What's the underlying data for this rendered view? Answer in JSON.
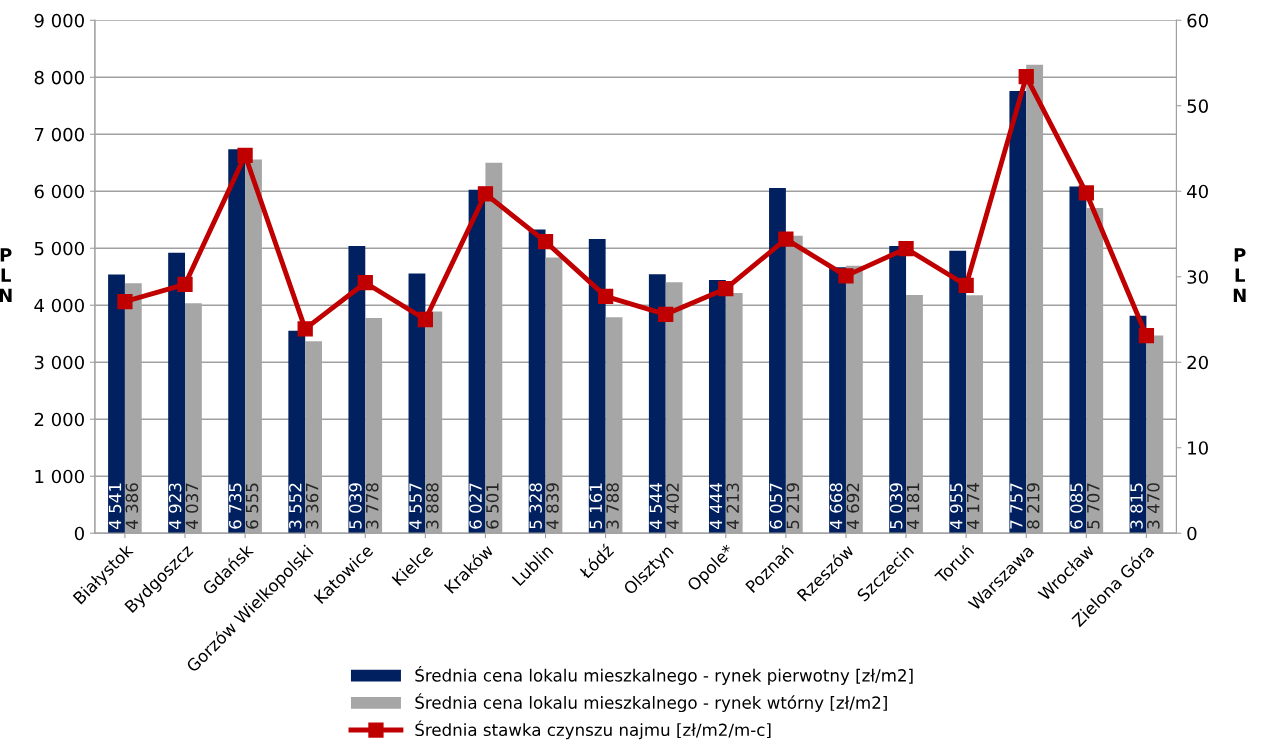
{
  "chart_data": {
    "type": "bar",
    "categories": [
      "Białystok",
      "Bydgoszcz",
      "Gdańsk",
      "Gorzów Wielkopolski",
      "Katowice",
      "Kielce",
      "Kraków",
      "Lublin",
      "Łódź",
      "Olsztyn",
      "Opole*",
      "Poznań",
      "Rzeszów",
      "Szczecin",
      "Toruń",
      "Warszawa",
      "Wrocław",
      "Zielona Góra"
    ],
    "series": [
      {
        "name": "Średnia cena lokalu mieszkalnego - rynek pierwotny [zł/m2]",
        "color": "#002060",
        "values": [
          4541,
          4923,
          6735,
          3552,
          5039,
          4557,
          6027,
          5328,
          5161,
          4544,
          4444,
          6057,
          4668,
          5039,
          4955,
          7757,
          6085,
          3815
        ],
        "value_labels": [
          "4 541",
          "4 923",
          "6 735",
          "3 552",
          "5 039",
          "4 557",
          "6 027",
          "5 328",
          "5 161",
          "4 544",
          "4 444",
          "6 057",
          "4 668",
          "5 039",
          "4 955",
          "7 757",
          "6 085",
          "3 815"
        ]
      },
      {
        "name": "Średnia cena lokalu mieszkalnego - rynek wtórny [zł/m2]",
        "color": "#a6a6a6",
        "values": [
          4386,
          4037,
          6555,
          3367,
          3778,
          3888,
          6501,
          4839,
          3788,
          4402,
          4213,
          5219,
          4692,
          4181,
          4174,
          8219,
          5707,
          3470
        ],
        "value_labels": [
          "4 386",
          "4 037",
          "6 555",
          "3 367",
          "3 778",
          "3 888",
          "6 501",
          "4 839",
          "3 788",
          "4 402",
          "4 213",
          "5 219",
          "4 692",
          "4 181",
          "4 174",
          "8 219",
          "5 707",
          "3 470"
        ]
      },
      {
        "name": "Średnia stawka czynszu najmu [zł/m2/m-c]",
        "type": "line",
        "axis": "y2",
        "color": "#c00000",
        "marker": "square",
        "line_style": "solid",
        "values": [
          27.1,
          29.1,
          44.2,
          23.9,
          29.3,
          25.0,
          39.7,
          34.1,
          27.7,
          25.6,
          28.6,
          34.4,
          30.1,
          33.3,
          29.0,
          53.4,
          39.8,
          23.1
        ]
      }
    ],
    "ylabel": "P\nL\nN",
    "y2label": "P\nL\nN",
    "ylim": [
      0,
      9000
    ],
    "yticks": [
      {
        "value": 0,
        "label": "0"
      },
      {
        "value": 1000,
        "label": "1 000"
      },
      {
        "value": 2000,
        "label": "2 000"
      },
      {
        "value": 3000,
        "label": "3 000"
      },
      {
        "value": 4000,
        "label": "4 000"
      },
      {
        "value": 5000,
        "label": "5 000"
      },
      {
        "value": 6000,
        "label": "6 000"
      },
      {
        "value": 7000,
        "label": "7 000"
      },
      {
        "value": 8000,
        "label": "8 000"
      },
      {
        "value": 9000,
        "label": "9 000"
      }
    ],
    "y2lim": [
      0,
      60
    ],
    "y2ticks": [
      0,
      10,
      20,
      30,
      40,
      50,
      60
    ],
    "grid": "y",
    "legend": "bottom"
  }
}
